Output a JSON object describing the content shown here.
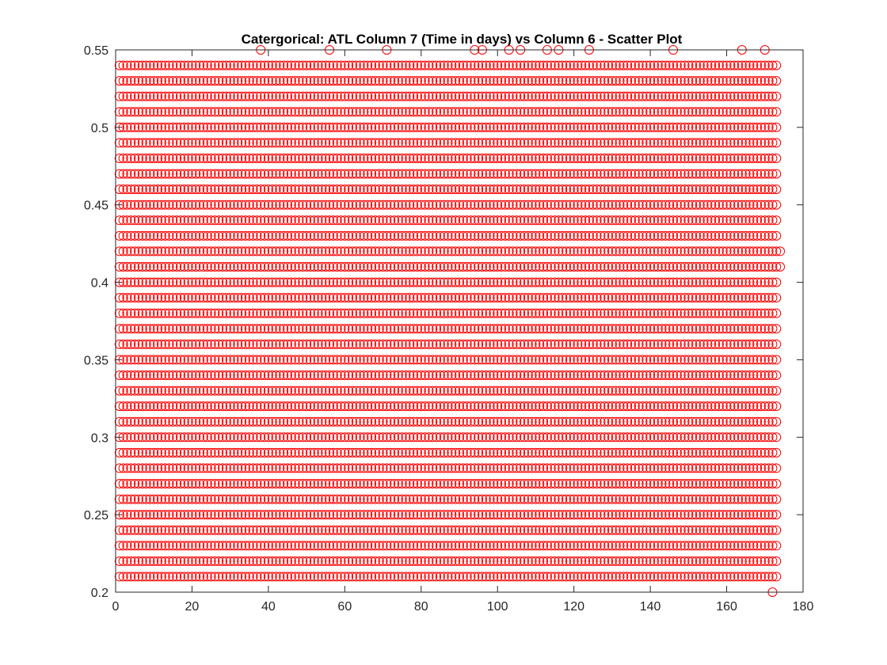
{
  "chart_data": {
    "type": "scatter",
    "title": "Catergorical: ATL Column 7 (Time in days) vs Column 6 - Scatter Plot",
    "xlabel": "",
    "ylabel": "",
    "xlim": [
      0,
      180
    ],
    "ylim": [
      0.2,
      0.55
    ],
    "xticks": [
      0,
      20,
      40,
      60,
      80,
      100,
      120,
      140,
      160,
      180
    ],
    "yticks": [
      0.2,
      0.25,
      0.3,
      0.35,
      0.4,
      0.45,
      0.5,
      0.55
    ],
    "xtick_labels": [
      "0",
      "20",
      "40",
      "60",
      "80",
      "100",
      "120",
      "140",
      "160",
      "180"
    ],
    "ytick_labels": [
      "0.2",
      "0.25",
      "0.3",
      "0.35",
      "0.4",
      "0.45",
      "0.5",
      "0.55"
    ],
    "grid": false,
    "legend": "none",
    "marker": "circle-open",
    "marker_color": "#ff0000",
    "series": [
      {
        "x_range": [
          1,
          173
        ],
        "x_step": 1,
        "y_values": [
          0.21,
          0.22,
          0.23,
          0.24,
          0.25,
          0.26,
          0.27,
          0.28,
          0.29,
          0.3,
          0.31,
          0.32,
          0.33,
          0.34,
          0.35,
          0.36,
          0.37,
          0.38,
          0.39,
          0.4,
          0.41,
          0.42,
          0.43,
          0.44,
          0.45,
          0.46,
          0.47,
          0.48,
          0.49,
          0.5,
          0.51,
          0.52,
          0.53,
          0.54
        ],
        "description_extra": [
          {
            "x": 38,
            "y": 0.55
          },
          {
            "x": 56,
            "y": 0.55
          },
          {
            "x": 71,
            "y": 0.55
          },
          {
            "x": 94,
            "y": 0.55
          },
          {
            "x": 96,
            "y": 0.55
          },
          {
            "x": 103,
            "y": 0.55
          },
          {
            "x": 106,
            "y": 0.55
          },
          {
            "x": 113,
            "y": 0.55
          },
          {
            "x": 116,
            "y": 0.55
          },
          {
            "x": 124,
            "y": 0.55
          },
          {
            "x": 146,
            "y": 0.55
          },
          {
            "x": 164,
            "y": 0.55
          },
          {
            "x": 170,
            "y": 0.55
          },
          {
            "x": 172,
            "y": 0.2
          },
          {
            "x": 174,
            "y": 0.42
          },
          {
            "x": 174,
            "y": 0.41
          },
          {
            "x": 1,
            "y": 0.5
          }
        ]
      }
    ]
  }
}
